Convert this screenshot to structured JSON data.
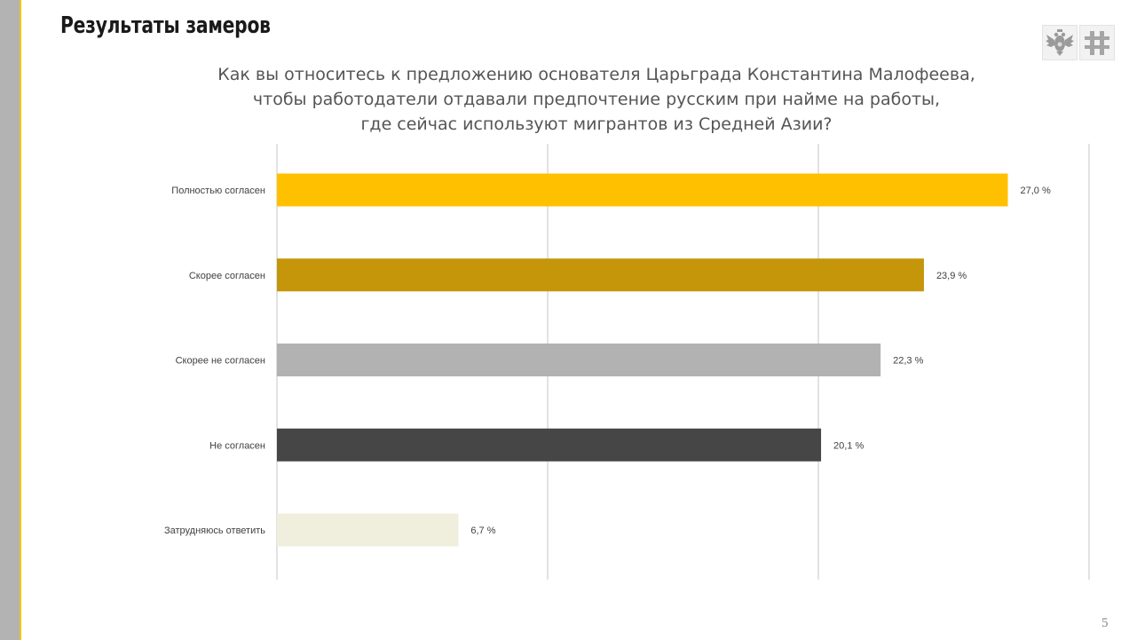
{
  "slide": {
    "title": "Результаты замеров",
    "page_number": "5"
  },
  "logos": [
    {
      "icon": "double-headed-eagle-icon"
    },
    {
      "icon": "orthodox-cross-icon"
    }
  ],
  "colors": {
    "accent": "#f5c400",
    "sidebar": "#b3b3b3"
  },
  "chart_data": {
    "type": "bar",
    "orientation": "horizontal",
    "title_lines": [
      "Как вы относитесь к предложению основателя Царьграда Константина Малофеева,",
      "чтобы работодатели отдавали предпочтение русским при найме на работы,",
      "где сейчас используют мигрантов из Средней Азии?"
    ],
    "categories": [
      "Полностью согласен",
      "Скорее согласен",
      "Скорее не согласен",
      "Не согласен",
      "Затрудняюсь ответить"
    ],
    "values": [
      27.0,
      23.9,
      22.3,
      20.1,
      6.7
    ],
    "value_labels": [
      "27,0 %",
      "23,9 %",
      "22,3 %",
      "20,1 %",
      "6,7 %"
    ],
    "bar_colors": [
      "#ffc000",
      "#c5960a",
      "#b2b2b2",
      "#464646",
      "#f0eedd"
    ],
    "xlim": [
      0,
      30
    ],
    "grid": true,
    "xlabel": "",
    "ylabel": ""
  }
}
